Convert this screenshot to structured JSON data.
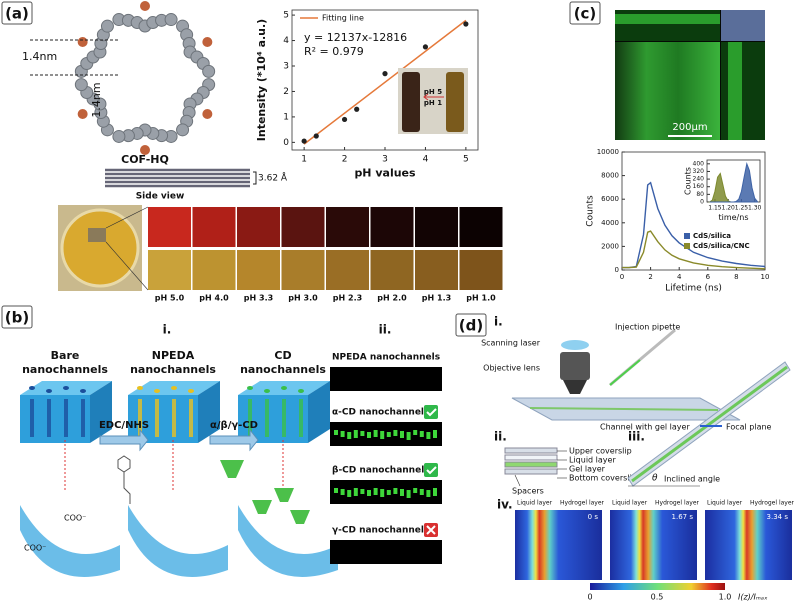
{
  "panel_labels": [
    "(a)",
    "(b)",
    "(c)",
    "(d)"
  ],
  "panel_a": {
    "pore_size_horizontal": "1.4nm",
    "pore_size_vertical": "1.4nm",
    "structure_name": "COF-HQ",
    "layer_spacing": "3.62 Å",
    "side_view": "Side view",
    "vial_labels": [
      "pH 5",
      "pH 1"
    ],
    "image_labels": [
      "pH 5.0",
      "pH 4.0",
      "pH 3.3",
      "pH 3.0",
      "pH 2.3",
      "pH 2.0",
      "pH 1.3",
      "pH 1.0"
    ]
  },
  "panel_b": {
    "sub_labels": [
      "i.",
      "ii."
    ],
    "states": [
      [
        "Bare",
        "nanochannels"
      ],
      [
        "NPEDA",
        "nanochannels"
      ],
      [
        "CD",
        "nanochannels"
      ]
    ],
    "reagents": [
      "EDC/NHS",
      "α/β/γ-CD"
    ],
    "carboxyl_labels": [
      "COO⁻",
      "COO⁻"
    ],
    "channel_images": [
      "NPEDA nanochannels",
      "α-CD nanochannels",
      "β-CD nanochannels",
      "γ-CD nanochannels"
    ]
  },
  "panel_c": {
    "scale_bar": "200μm"
  },
  "panel_d": {
    "sub_labels": [
      "i.",
      "ii.",
      "iii.",
      "iv."
    ],
    "setup_labels": [
      "Injection pipette",
      "Scanning laser",
      "Objective lens",
      "Channel with gel layer"
    ],
    "spacers": "Spacers",
    "layer_labels": [
      "Upper coverslip",
      "Liquid layer",
      "Gel layer",
      "Bottom coverslip"
    ],
    "angle_symbol": "θ",
    "angle_label": "Inclined angle",
    "focal_plane": "Focal plane",
    "frames": [
      {
        "left": "Liquid layer",
        "right": "Hydrogel layer",
        "time": "0 s"
      },
      {
        "left": "Liquid layer",
        "right": "Hydrogel layer",
        "time": "1.67 s"
      },
      {
        "left": "Liquid layer",
        "right": "Hydrogel layer",
        "time": "3.34 s"
      }
    ],
    "colorbar_labels": [
      "0",
      "0.5",
      "1.0"
    ],
    "colorbar_title": "I(z)/Iₘₐₓ"
  },
  "chart_data": [
    {
      "type": "scatter",
      "x_label": "pH values",
      "y_label": "Intensity (*10⁴ a.u.)",
      "annotations": [
        "y = 12137x-12816",
        "R² = 0.979"
      ],
      "x": [
        1,
        1.3,
        2,
        2.3,
        3,
        4,
        5
      ],
      "values": [
        0.05,
        0.25,
        0.9,
        1.3,
        2.7,
        3.75,
        4.65
      ],
      "color": "#222222",
      "fit": {
        "name": "Fitting line",
        "color": "#e5793a",
        "x": [
          1,
          5
        ],
        "values": [
          -0.07,
          4.79
        ]
      },
      "xlim": [
        0.7,
        5.3
      ],
      "xticks": [
        1,
        2,
        3,
        4,
        5
      ],
      "ylim": [
        -0.3,
        5.2
      ],
      "yticks": [
        0,
        1,
        2,
        3,
        4,
        5
      ]
    },
    {
      "type": "line",
      "x_label": "Lifetime (ns)",
      "y_label": "Counts",
      "x": [
        0,
        0.5,
        1,
        1.5,
        1.8,
        2,
        2.5,
        3,
        3.5,
        4,
        5,
        6,
        7,
        8,
        9,
        10
      ],
      "series": [
        {
          "name": "CdS/silica",
          "color": "#3a5fa8",
          "values": [
            200,
            200,
            300,
            3000,
            7200,
            7400,
            5200,
            3800,
            2900,
            2300,
            1500,
            1050,
            750,
            550,
            400,
            300
          ]
        },
        {
          "name": "CdS/silica/CNC",
          "color": "#8a8a2a",
          "values": [
            200,
            200,
            250,
            1500,
            3200,
            3300,
            2400,
            1700,
            1250,
            950,
            600,
            400,
            280,
            200,
            150,
            100
          ]
        }
      ],
      "xlim": [
        0,
        10
      ],
      "xticks": [
        0,
        2,
        4,
        6,
        8,
        10
      ],
      "ylim": [
        0,
        10000
      ],
      "yticks": [
        0,
        2000,
        4000,
        6000,
        8000,
        10000
      ],
      "legend": "lower right"
    },
    {
      "type": "area",
      "x_label": "time/ns",
      "y_label": "Counts",
      "x": [
        1.13,
        1.14,
        1.15,
        1.16,
        1.17,
        1.18,
        1.19,
        1.2,
        1.21,
        1.22,
        1.23,
        1.24,
        1.25,
        1.26,
        1.27,
        1.28,
        1.29,
        1.3,
        1.31
      ],
      "series": [
        {
          "color": "#7d8a2e",
          "values": [
            0,
            20,
            110,
            260,
            300,
            180,
            60,
            10,
            0,
            0,
            0,
            0,
            0,
            0,
            0,
            0,
            0,
            0,
            0
          ]
        },
        {
          "color": "#3e63a6",
          "values": [
            0,
            0,
            0,
            0,
            0,
            0,
            0,
            0,
            0,
            0,
            5,
            30,
            110,
            260,
            400,
            330,
            150,
            40,
            5
          ]
        }
      ],
      "xlim": [
        1.12,
        1.32
      ],
      "xticks": [
        1.15,
        {
          "value": 1.2,
          "label": "1.20"
        },
        1.25,
        {
          "value": 1.3,
          "label": "1.30"
        }
      ],
      "ylim": [
        0,
        440
      ],
      "yticks": [
        0,
        80,
        160,
        240,
        320,
        400
      ]
    }
  ]
}
